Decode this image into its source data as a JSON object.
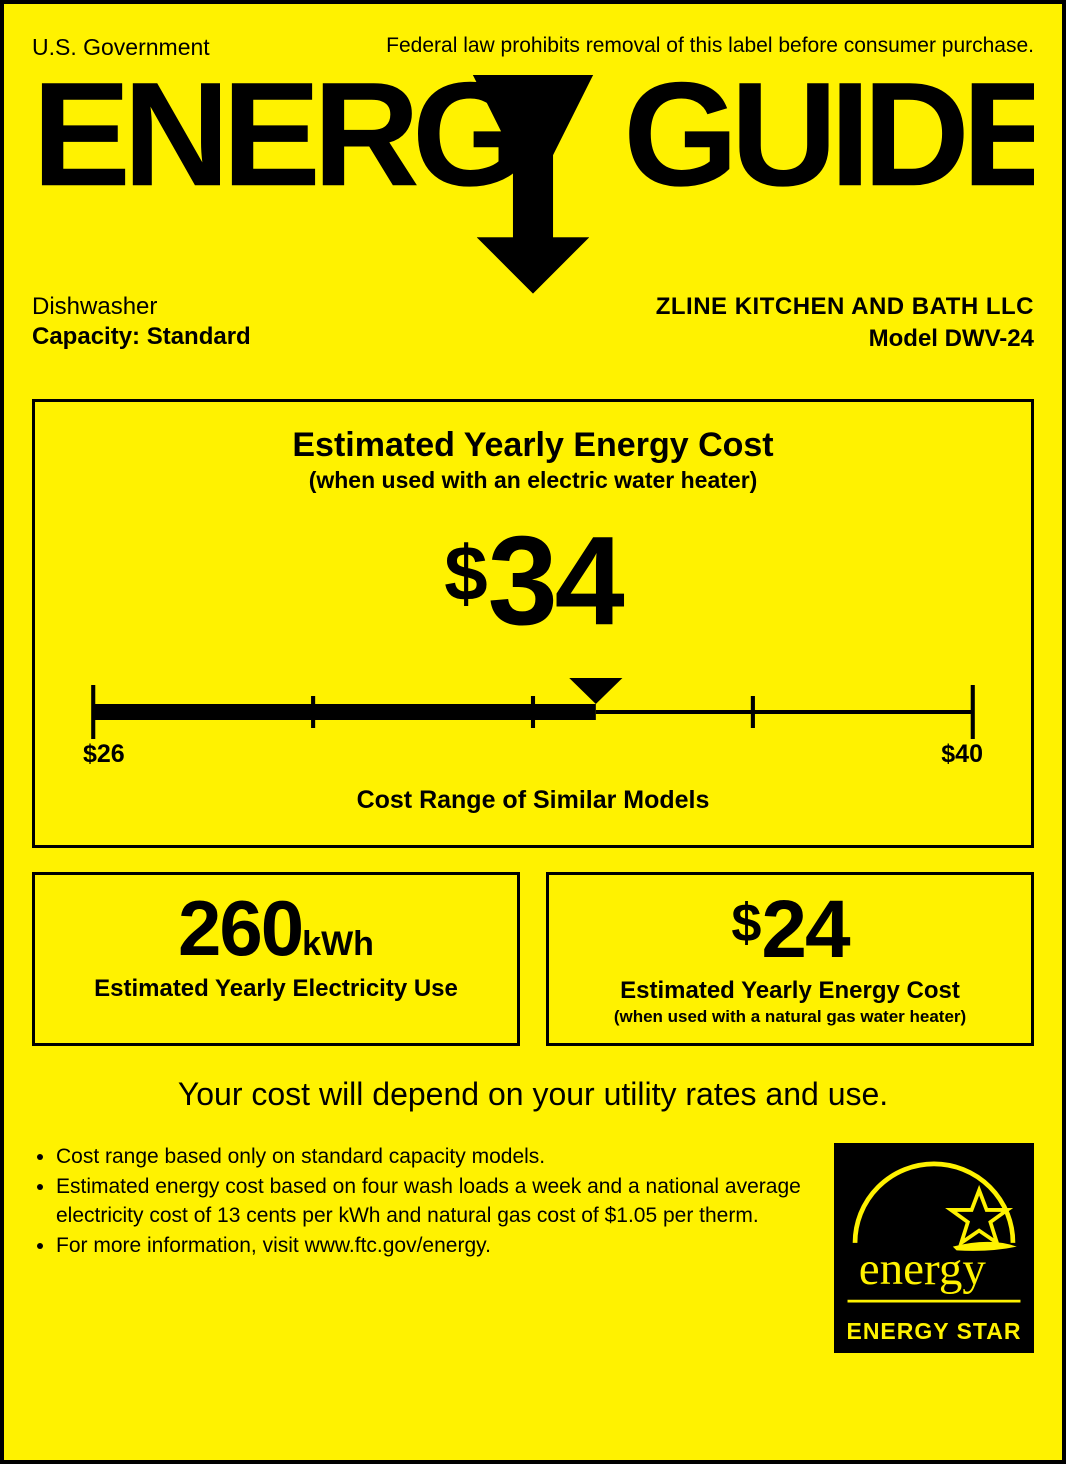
{
  "colors": {
    "background": "#fff200",
    "ink": "#000000",
    "estar_bg": "#000000",
    "estar_fg": "#fff200"
  },
  "header": {
    "gov": "U.S. Government",
    "disclaimer": "Federal law prohibits removal of this label before consumer purchase.",
    "wordmark": "ENERGYGUIDE"
  },
  "product": {
    "type": "Dishwasher",
    "capacity_label": "Capacity: Standard",
    "manufacturer": "ZLINE KITCHEN AND BATH LLC",
    "model_label": "Model DWV-24"
  },
  "cost": {
    "title": "Estimated Yearly Energy Cost",
    "subtitle": "(when used with an electric water heater)",
    "currency": "$",
    "amount": "34",
    "scale": {
      "min_label": "$26",
      "max_label": "$40",
      "min": 26,
      "max": 40,
      "value": 34,
      "tick_count": 5,
      "caption": "Cost Range of Similar Models",
      "bar_thin": 4,
      "bar_thick": 16,
      "tick_height": 32,
      "end_tick_height": 54,
      "pointer_size": 26
    }
  },
  "kwh": {
    "value": "260",
    "unit": "kWh",
    "caption": "Estimated Yearly Electricity Use"
  },
  "gas": {
    "currency": "$",
    "amount": "24",
    "caption": "Estimated Yearly Energy Cost",
    "subcaption": "(when used with a natural gas water heater)"
  },
  "depend": "Your cost will depend on your utility rates and use.",
  "bullets": [
    "Cost range based only on standard capacity models.",
    "Estimated energy cost based on four wash loads a week and a national average electricity cost of 13 cents per kWh and natural gas cost of $1.05 per therm.",
    "For more information, visit www.ftc.gov/energy."
  ],
  "energy_star": {
    "text": "ENERGY STAR",
    "script": "energy"
  }
}
